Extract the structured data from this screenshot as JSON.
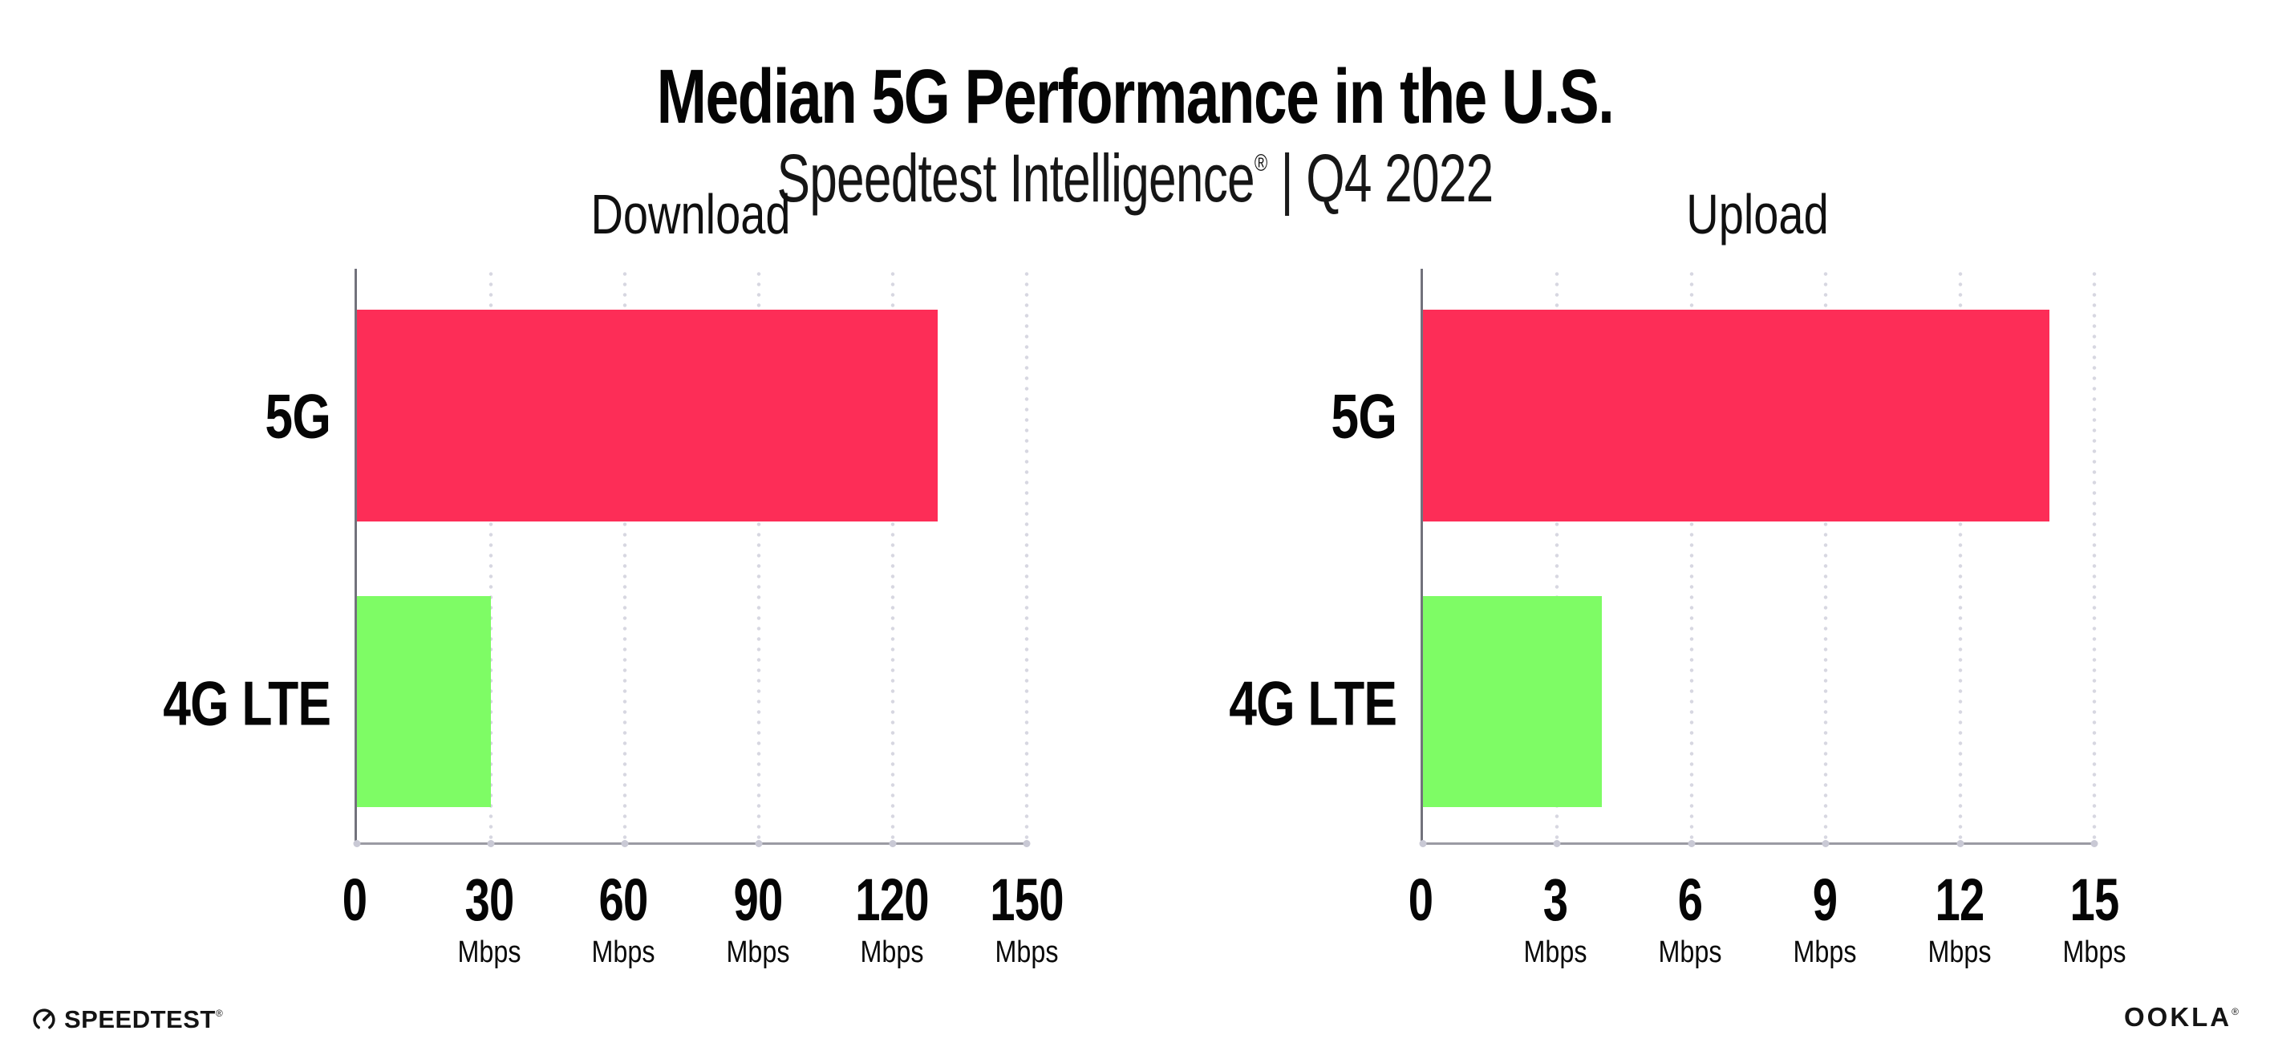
{
  "header": {
    "title": "Median 5G Performance in the U.S.",
    "subtitle_brand": "Speedtest Intelligence",
    "subtitle_reg": "®",
    "subtitle_separator": "|",
    "subtitle_period": "Q4 2022"
  },
  "chart_data": [
    {
      "type": "bar",
      "orientation": "horizontal",
      "title": "Download",
      "categories": [
        "5G",
        "4G LTE"
      ],
      "values": [
        130,
        30
      ],
      "unit": "Mbps",
      "xlim": [
        0,
        150
      ],
      "xticks": [
        0,
        30,
        60,
        90,
        120,
        150
      ],
      "bar_colors": [
        "#FD2D57",
        "#7EFC65"
      ],
      "grid": "dotted-vertical",
      "legend": "none"
    },
    {
      "type": "bar",
      "orientation": "horizontal",
      "title": "Upload",
      "categories": [
        "5G",
        "4G LTE"
      ],
      "values": [
        14,
        4
      ],
      "unit": "Mbps",
      "xlim": [
        0,
        15
      ],
      "xticks": [
        0,
        3,
        6,
        9,
        12,
        15
      ],
      "bar_colors": [
        "#FD2D57",
        "#7EFC65"
      ],
      "grid": "dotted-vertical",
      "legend": "none"
    }
  ],
  "footer": {
    "speedtest_label": "SPEEDTEST",
    "speedtest_reg": "®",
    "ookla_label": "OOKLA",
    "ookla_reg": "®"
  },
  "colors": {
    "bar_5g": "#FD2D57",
    "bar_4g_lte": "#7EFC65",
    "axis_left": "#72727c",
    "axis_bottom": "#9b9ba3",
    "grid_dot": "#d7d7e1",
    "text": "#0d0d0d",
    "background": "#ffffff"
  }
}
